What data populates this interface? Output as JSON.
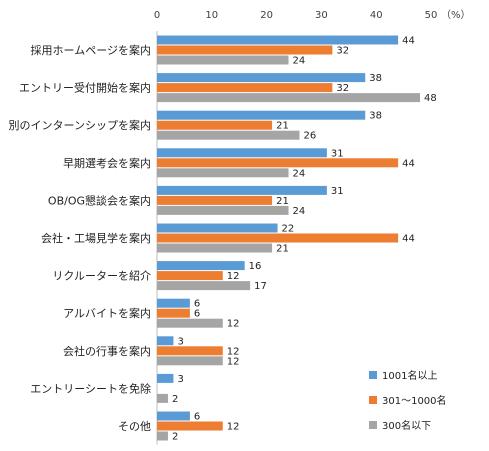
{
  "chart_data": {
    "type": "bar",
    "orientation": "horizontal",
    "unit_label": "（%）",
    "xlim": [
      0,
      50
    ],
    "x_ticks": [
      0,
      10,
      20,
      30,
      40,
      50
    ],
    "grid": false,
    "legend_position": "bottom-right",
    "categories": [
      "採用ホームページを案内",
      "エントリー受付開始を案内",
      "別のインターンシップを案内",
      "早期選考会を案内",
      "OB/OG懇談会を案内",
      "会社・工場見学を案内",
      "リクルーターを紹介",
      "アルバイトを案内",
      "会社の行事を案内",
      "エントリーシートを免除",
      "その他"
    ],
    "series": [
      {
        "name": "1001名以上",
        "color": "#5b9bd5",
        "values": [
          44,
          38,
          38,
          31,
          31,
          22,
          16,
          6,
          3,
          3,
          6
        ]
      },
      {
        "name": "301～1000名",
        "color": "#ed7d31",
        "values": [
          32,
          32,
          21,
          44,
          21,
          44,
          12,
          6,
          12,
          null,
          12
        ]
      },
      {
        "name": "300名以下",
        "color": "#a5a5a5",
        "values": [
          24,
          48,
          26,
          24,
          24,
          21,
          17,
          12,
          12,
          2,
          2
        ]
      }
    ]
  }
}
